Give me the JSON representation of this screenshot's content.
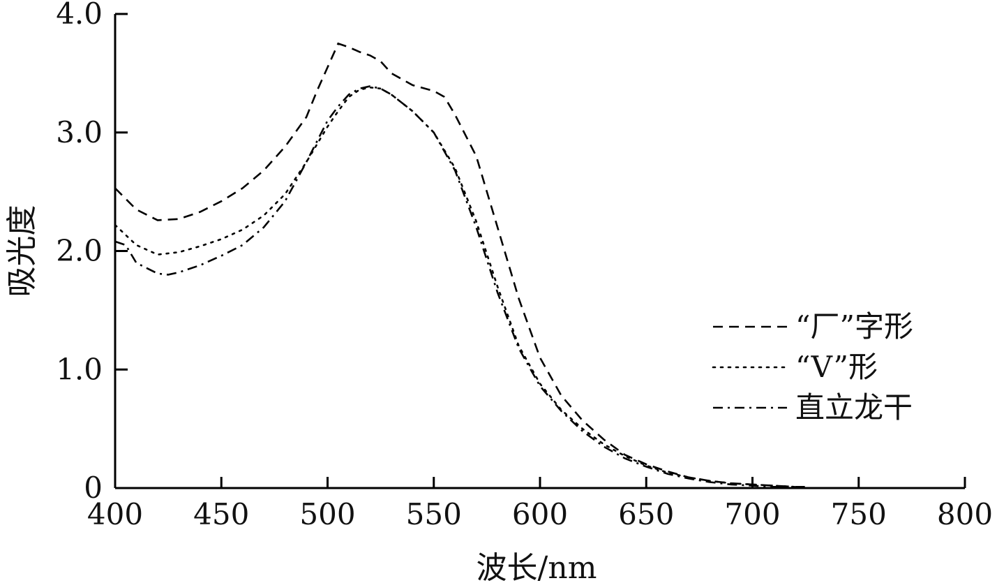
{
  "chart_data": {
    "type": "line",
    "title": "",
    "xlabel": "波长/nm",
    "ylabel": "吸光度",
    "xlim": [
      400,
      800
    ],
    "ylim": [
      0,
      4.0
    ],
    "x_ticks": [
      400,
      450,
      500,
      550,
      600,
      650,
      700,
      750,
      800
    ],
    "x_tick_labels": [
      "400",
      "450",
      "500",
      "550",
      "600",
      "650",
      "700",
      "750",
      "800"
    ],
    "y_ticks": [
      0,
      1.0,
      2.0,
      3.0,
      4.0
    ],
    "y_tick_labels": [
      "0",
      "1.0",
      "2.0",
      "3.0",
      "4.0"
    ],
    "grid": false,
    "legend_position": "right",
    "series": [
      {
        "name": "“厂”字形",
        "line_style": "dashed",
        "x": [
          400,
          410,
          420,
          430,
          440,
          450,
          460,
          470,
          480,
          490,
          495,
          500,
          505,
          510,
          515,
          520,
          525,
          530,
          540,
          550,
          555,
          560,
          570,
          580,
          590,
          600,
          610,
          620,
          630,
          640,
          650,
          660,
          670,
          680,
          690,
          700,
          710,
          720,
          725
        ],
        "y": [
          2.53,
          2.35,
          2.26,
          2.27,
          2.33,
          2.42,
          2.53,
          2.68,
          2.88,
          3.13,
          3.35,
          3.55,
          3.75,
          3.72,
          3.68,
          3.65,
          3.6,
          3.5,
          3.4,
          3.35,
          3.3,
          3.15,
          2.8,
          2.2,
          1.6,
          1.1,
          0.78,
          0.57,
          0.41,
          0.28,
          0.2,
          0.14,
          0.09,
          0.06,
          0.04,
          0.03,
          0.02,
          0.01,
          0.01
        ]
      },
      {
        "name": "“V”形",
        "line_style": "dotted",
        "x": [
          400,
          410,
          420,
          430,
          440,
          450,
          460,
          470,
          480,
          490,
          500,
          505,
          510,
          515,
          520,
          525,
          530,
          540,
          550,
          560,
          570,
          580,
          590,
          600,
          610,
          620,
          630,
          640,
          650,
          660,
          670,
          680,
          690,
          700,
          710,
          720
        ],
        "y": [
          2.22,
          2.05,
          1.97,
          1.99,
          2.04,
          2.1,
          2.18,
          2.3,
          2.48,
          2.75,
          3.05,
          3.18,
          3.3,
          3.36,
          3.38,
          3.37,
          3.32,
          3.18,
          3.0,
          2.7,
          2.25,
          1.7,
          1.2,
          0.88,
          0.66,
          0.5,
          0.37,
          0.27,
          0.19,
          0.13,
          0.09,
          0.06,
          0.04,
          0.03,
          0.02,
          0.01
        ]
      },
      {
        "name": "直立龙干",
        "line_style": "dash-dot",
        "x": [
          400,
          405,
          410,
          420,
          425,
          430,
          440,
          450,
          460,
          470,
          480,
          490,
          500,
          505,
          510,
          515,
          520,
          525,
          530,
          540,
          550,
          560,
          570,
          580,
          590,
          600,
          610,
          620,
          630,
          640,
          650,
          660,
          670,
          680,
          690,
          700,
          710,
          720
        ],
        "y": [
          2.08,
          2.05,
          1.9,
          1.81,
          1.8,
          1.82,
          1.88,
          1.96,
          2.05,
          2.2,
          2.42,
          2.75,
          3.1,
          3.22,
          3.32,
          3.37,
          3.39,
          3.37,
          3.32,
          3.18,
          3.0,
          2.68,
          2.2,
          1.65,
          1.18,
          0.86,
          0.65,
          0.48,
          0.35,
          0.25,
          0.18,
          0.12,
          0.08,
          0.05,
          0.03,
          0.02,
          0.01,
          0.01
        ]
      }
    ]
  }
}
